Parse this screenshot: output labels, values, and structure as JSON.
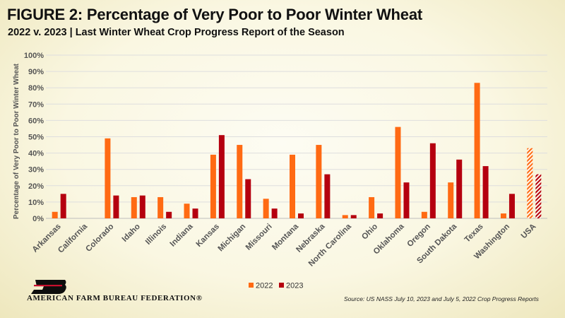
{
  "header": {
    "title": "FIGURE 2: Percentage of Very Poor to Poor Winter Wheat",
    "subtitle": "2022 v. 2023 | Last Winter Wheat Crop Progress Report of the Season"
  },
  "footer": {
    "org_name": "AMERICAN FARM BUREAU FEDERATION®",
    "source": "Source: US NASS July 10, 2023 and July 5, 2022 Crop Progress Reports",
    "logo_text": "FB"
  },
  "chart_data": {
    "type": "bar",
    "title": "FIGURE 2: Percentage of Very Poor to Poor Winter Wheat",
    "subtitle": "2022 v. 2023 | Last Winter Wheat Crop Progress Report of the Season",
    "xlabel": "",
    "ylabel": "Percentage of Very Poor to Poor Winter Wheat",
    "ylim": [
      0,
      100
    ],
    "yticks": [
      "0%",
      "10%",
      "20%",
      "30%",
      "40%",
      "50%",
      "60%",
      "70%",
      "80%",
      "90%",
      "100%"
    ],
    "categories": [
      "Arkansas",
      "California",
      "Colorado",
      "Idaho",
      "Illinois",
      "Indiana",
      "Kansas",
      "Michigan",
      "Missouri",
      "Montana",
      "Nebraska",
      "North Carolina",
      "Ohio",
      "Oklahoma",
      "Oregon",
      "South Dakota",
      "Texas",
      "Washington",
      "USA"
    ],
    "series": [
      {
        "name": "2022",
        "color": "#ff6a13",
        "values": [
          4,
          0,
          49,
          13,
          13,
          9,
          39,
          45,
          12,
          39,
          45,
          2,
          13,
          56,
          4,
          22,
          83,
          3,
          43
        ]
      },
      {
        "name": "2023",
        "color": "#b5000f",
        "values": [
          15,
          0,
          14,
          14,
          4,
          6,
          51,
          24,
          6,
          3,
          27,
          2,
          3,
          22,
          46,
          36,
          32,
          15,
          27
        ]
      }
    ],
    "hatched_categories": [
      "USA"
    ],
    "grid": true,
    "legend": "bottom-center"
  }
}
